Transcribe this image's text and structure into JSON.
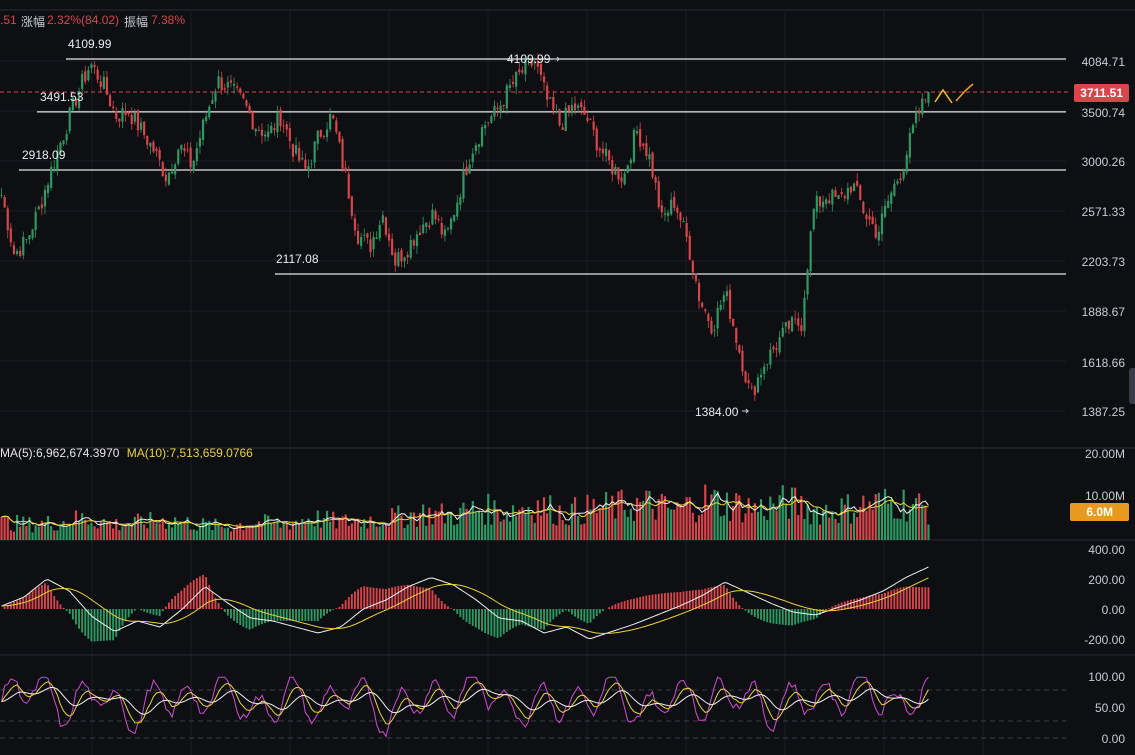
{
  "topbar": {
    "price_fragment": ".51",
    "change_label": "涨幅",
    "change_value": "2.32%(84.02)",
    "amplitude_label": "振幅",
    "amplitude_value": "7.38%"
  },
  "price_axis": [
    "4084.71",
    "3500.74",
    "3000.26",
    "2571.33",
    "2203.73",
    "1888.67",
    "1618.66",
    "1387.25"
  ],
  "current_price": "3711.51",
  "levels": [
    {
      "label": "4109.99",
      "value": 4109.99,
      "color": "#e9ecf1"
    },
    {
      "label": "3491.53",
      "value": 3491.53,
      "color": "#e9ecf1"
    },
    {
      "label": "2918.09",
      "value": 2918.09,
      "color": "#e9ecf1"
    },
    {
      "label": "2117.08",
      "value": 2117.08,
      "color": "#e9ecf1"
    }
  ],
  "annotations": {
    "high_right": "4109.99",
    "low": "1384.00"
  },
  "volume": {
    "ma5_label": "MA(5):6,962,674.3970",
    "ma10_label": "MA(10):7,513,659.0766",
    "axis": [
      "20.00M",
      "10.00M"
    ],
    "current": "6.0M"
  },
  "macd_axis": [
    "400.00",
    "200.00",
    "0.00",
    "-200.00"
  ],
  "osc_axis": [
    "100.00",
    "50.00",
    "0.00"
  ],
  "colors": {
    "up": "#2e9a63",
    "down": "#d9454a",
    "ma_white": "#f1f1f1",
    "ma_yellow": "#e8d23a",
    "pink": "#d24bd1",
    "badge_red": "#d9454a",
    "badge_orange": "#e89a1e"
  },
  "chart_data": {
    "type": "candlestick",
    "y_scale": "log",
    "ylim": [
      1387.25,
      4084.71
    ],
    "close_path": [
      2700,
      2250,
      2350,
      2600,
      2950,
      3300,
      3700,
      4050,
      3800,
      3450,
      3500,
      3300,
      3100,
      2850,
      3150,
      2950,
      3400,
      3850,
      3750,
      3600,
      3350,
      3250,
      3450,
      3100,
      2900,
      3250,
      3450,
      2900,
      2400,
      2300,
      2550,
      2200,
      2300,
      2450,
      2550,
      2350,
      2700,
      3100,
      3350,
      3500,
      3750,
      3950,
      4080,
      3600,
      3350,
      3550,
      3450,
      3150,
      2950,
      2850,
      3300,
      3050,
      2500,
      2650,
      2350,
      1950,
      1800,
      2000,
      1700,
      1450,
      1600,
      1700,
      1800,
      1820,
      2600,
      2700,
      2650,
      2800,
      2550,
      2400,
      2700,
      2950,
      3400,
      3711.51
    ],
    "volume_path": [
      4,
      3.5,
      4,
      5,
      3.5,
      4,
      4.5,
      3.5,
      3,
      4,
      3.5,
      5,
      4,
      4.5,
      5,
      6,
      5.5,
      7,
      6.5,
      8,
      6,
      7,
      7.5,
      8,
      6.5,
      9,
      8,
      7,
      8.5,
      6.5,
      7,
      8,
      8.5,
      7
    ],
    "macd_path": [
      20,
      80,
      200,
      120,
      -50,
      -150,
      -80,
      -120,
      0,
      150,
      40,
      -60,
      -80,
      -120,
      -160,
      -120,
      0,
      60,
      150,
      210,
      160,
      60,
      -60,
      -80,
      -160,
      -120,
      -200,
      -150,
      -100,
      -40,
      20,
      90,
      180,
      110,
      40,
      -20,
      -40,
      10,
      60,
      120,
      210,
      280
    ],
    "osc_path": [
      60,
      90,
      40,
      80,
      30,
      70,
      55,
      85,
      35,
      75,
      45,
      80,
      30,
      70,
      60,
      90,
      40,
      65,
      50,
      85,
      35,
      75,
      55,
      80,
      40,
      70,
      60,
      90,
      45,
      85
    ]
  }
}
